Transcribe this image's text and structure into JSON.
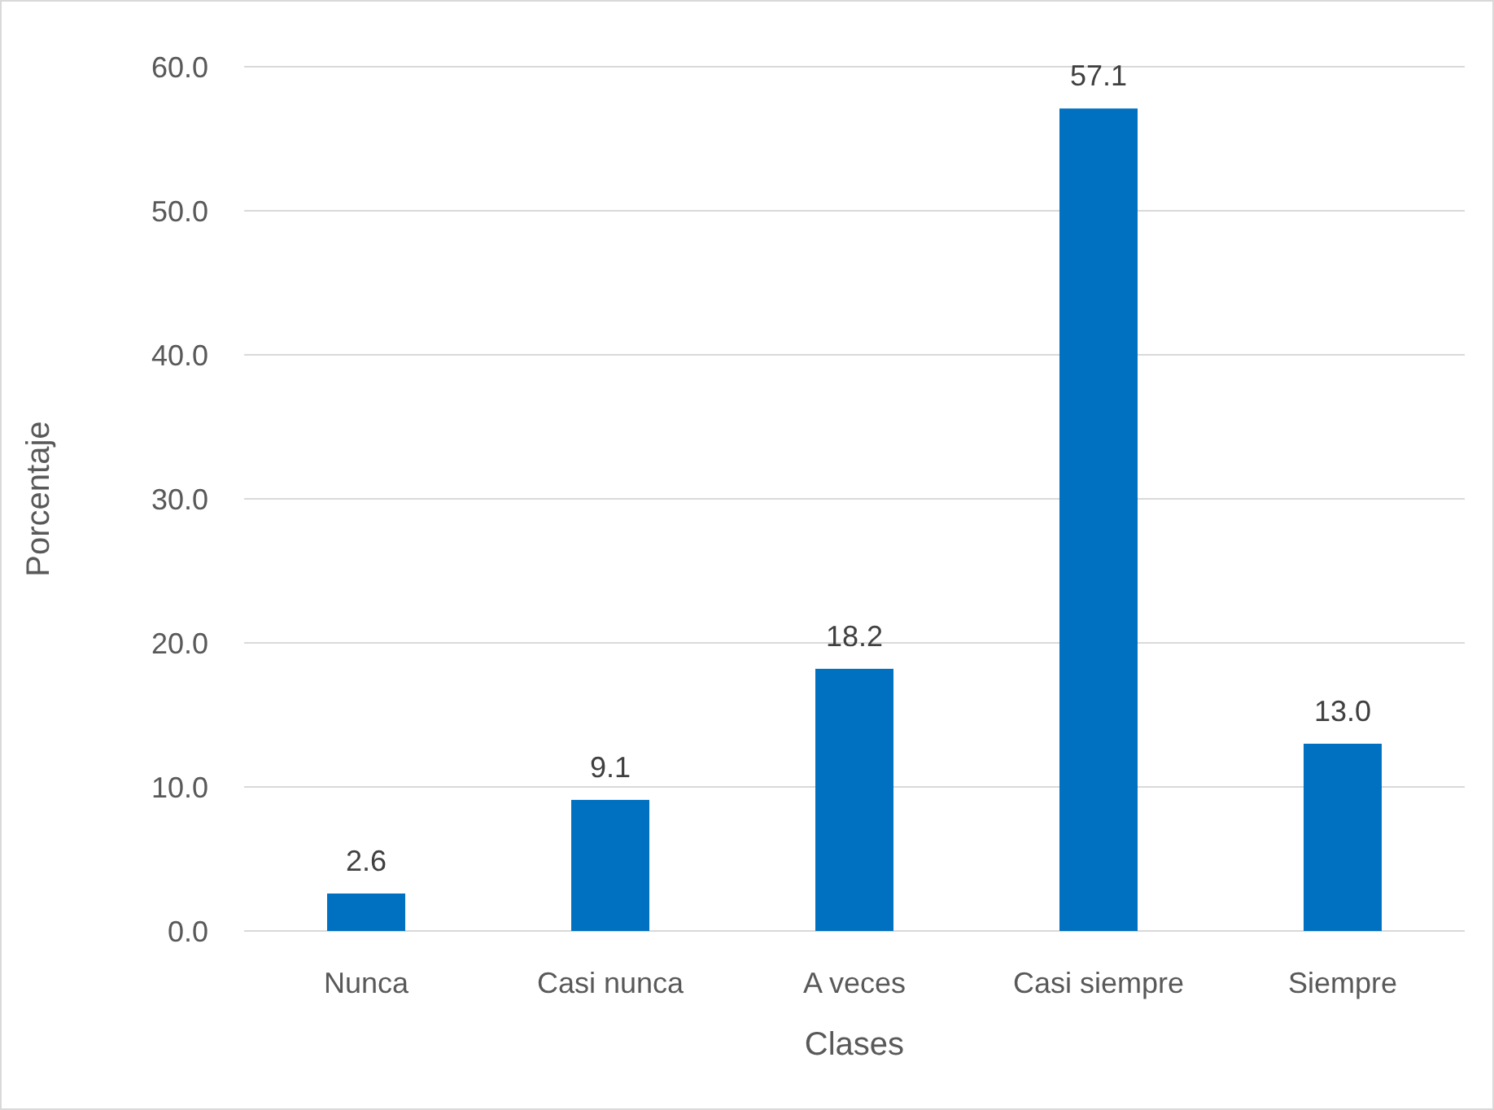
{
  "chart_data": {
    "type": "bar",
    "xlabel": "Clases",
    "ylabel": "Porcentaje",
    "categories": [
      "Nunca",
      "Casi nunca",
      "A veces",
      "Casi siempre",
      "Siempre"
    ],
    "values": [
      2.6,
      9.1,
      18.2,
      57.1,
      13.0
    ],
    "value_labels": [
      "2.6",
      "9.1",
      "18.2",
      "57.1",
      "13.0"
    ],
    "color": "#0070c0",
    "ylim": [
      0,
      60
    ],
    "yticks": [
      {
        "value": 0,
        "label": "0.0"
      },
      {
        "value": 10,
        "label": "10.0"
      },
      {
        "value": 20,
        "label": "20.0"
      },
      {
        "value": 30,
        "label": "30.0"
      },
      {
        "value": 40,
        "label": "40.0"
      },
      {
        "value": 50,
        "label": "50.0"
      },
      {
        "value": 60,
        "label": "60.0"
      }
    ],
    "grid": "y"
  }
}
